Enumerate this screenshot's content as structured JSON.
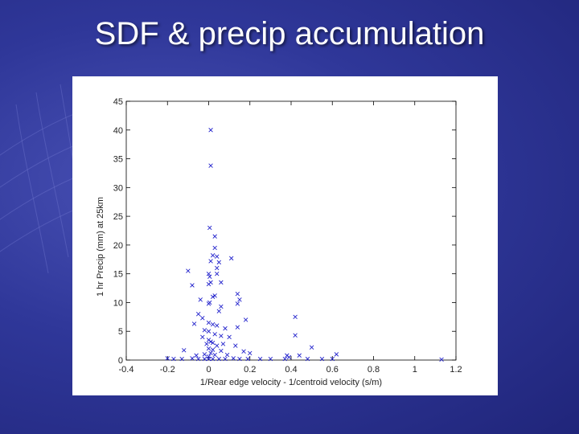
{
  "slide": {
    "title": "SDF & precip accumulation",
    "background_color": "#2f3799",
    "title_color": "#ffffff"
  },
  "chart_data": {
    "type": "scatter",
    "title": "",
    "xlabel": "1/Rear edge velocity - 1/centroid velocity (s/m)",
    "ylabel": "1 hr Precip (mm) at 25km",
    "xlim": [
      -0.4,
      1.2
    ],
    "ylim": [
      0,
      45
    ],
    "xticks": [
      "-0.4",
      "-0.2",
      "0",
      "0.2",
      "0.4",
      "0.6",
      "0.8",
      "1",
      "1.2"
    ],
    "yticks": [
      "0",
      "5",
      "10",
      "15",
      "20",
      "25",
      "30",
      "35",
      "40",
      "45"
    ],
    "marker": "x",
    "marker_color": "#2222cc",
    "grid": false,
    "points": [
      [
        0.01,
        40.0
      ],
      [
        0.01,
        33.8
      ],
      [
        0.005,
        23.0
      ],
      [
        0.03,
        21.5
      ],
      [
        0.03,
        19.5
      ],
      [
        0.04,
        18.0
      ],
      [
        0.01,
        17.2
      ],
      [
        0.05,
        17.0
      ],
      [
        0.02,
        18.2
      ],
      [
        0.11,
        17.7
      ],
      [
        0.04,
        16.0
      ],
      [
        -0.1,
        15.5
      ],
      [
        0.0,
        15.0
      ],
      [
        0.005,
        14.5
      ],
      [
        0.04,
        15.0
      ],
      [
        0.0,
        13.2
      ],
      [
        0.01,
        13.5
      ],
      [
        -0.08,
        13.0
      ],
      [
        0.06,
        13.5
      ],
      [
        0.14,
        11.5
      ],
      [
        0.15,
        10.5
      ],
      [
        0.14,
        9.8
      ],
      [
        0.02,
        11.0
      ],
      [
        0.03,
        11.2
      ],
      [
        -0.04,
        10.5
      ],
      [
        0.005,
        10.0
      ],
      [
        0.0,
        9.8
      ],
      [
        0.06,
        9.3
      ],
      [
        0.05,
        8.5
      ],
      [
        -0.05,
        8.0
      ],
      [
        -0.03,
        7.3
      ],
      [
        0.18,
        7.0
      ],
      [
        0.42,
        7.5
      ],
      [
        0.14,
        5.7
      ],
      [
        -0.07,
        6.3
      ],
      [
        0.0,
        6.5
      ],
      [
        0.02,
        6.2
      ],
      [
        0.04,
        6.0
      ],
      [
        -0.02,
        5.2
      ],
      [
        0.08,
        5.5
      ],
      [
        0.42,
        4.3
      ],
      [
        0.0,
        5.0
      ],
      [
        0.03,
        4.5
      ],
      [
        -0.03,
        4.0
      ],
      [
        0.06,
        4.2
      ],
      [
        0.1,
        4.0
      ],
      [
        0.0,
        3.5
      ],
      [
        0.01,
        3.2
      ],
      [
        0.02,
        3.0
      ],
      [
        -0.01,
        2.8
      ],
      [
        0.04,
        2.5
      ],
      [
        0.07,
        2.8
      ],
      [
        0.13,
        2.5
      ],
      [
        0.5,
        2.2
      ],
      [
        -0.12,
        1.7
      ],
      [
        0.0,
        2.0
      ],
      [
        0.02,
        1.8
      ],
      [
        0.06,
        1.6
      ],
      [
        0.17,
        1.5
      ],
      [
        0.2,
        1.2
      ],
      [
        0.44,
        0.8
      ],
      [
        0.62,
        1.0
      ],
      [
        0.38,
        0.8
      ],
      [
        0.01,
        1.2
      ],
      [
        -0.02,
        1.0
      ],
      [
        0.03,
        0.9
      ],
      [
        0.09,
        0.9
      ],
      [
        -0.06,
        0.8
      ],
      [
        0.0,
        0.6
      ],
      [
        -0.2,
        0.3
      ],
      [
        -0.17,
        0.2
      ],
      [
        -0.13,
        0.2
      ],
      [
        -0.08,
        0.3
      ],
      [
        -0.05,
        0.2
      ],
      [
        -0.02,
        0.2
      ],
      [
        0.0,
        0.2
      ],
      [
        0.02,
        0.2
      ],
      [
        0.05,
        0.2
      ],
      [
        0.08,
        0.2
      ],
      [
        0.12,
        0.3
      ],
      [
        0.15,
        0.2
      ],
      [
        0.19,
        0.2
      ],
      [
        0.25,
        0.2
      ],
      [
        0.3,
        0.2
      ],
      [
        0.37,
        0.2
      ],
      [
        0.39,
        0.5
      ],
      [
        0.48,
        0.2
      ],
      [
        0.55,
        0.2
      ],
      [
        0.6,
        0.2
      ],
      [
        1.13,
        0.1
      ]
    ]
  }
}
